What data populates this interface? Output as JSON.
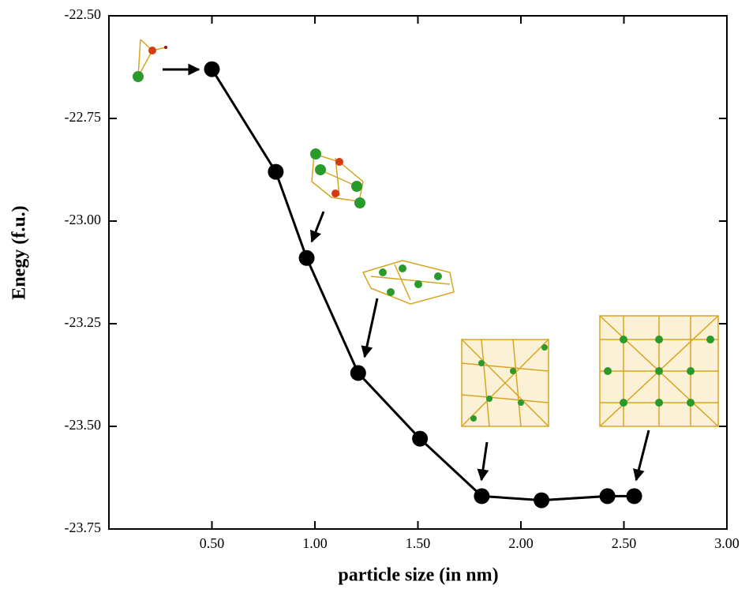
{
  "chart_data": {
    "type": "line",
    "x_label": "particle size (in nm)",
    "y_label": "Enegy (f.u.)",
    "x": [
      0.5,
      0.81,
      0.96,
      1.21,
      1.51,
      1.81,
      2.1,
      2.42,
      2.55
    ],
    "series": [
      {
        "color": "#000000",
        "values": [
          -22.63,
          -22.88,
          -23.09,
          -23.37,
          -23.53,
          -23.67,
          -23.68,
          -23.67,
          -23.67
        ]
      }
    ],
    "xlim": [
      0,
      3
    ],
    "ylim": [
      -23.75,
      -22.5
    ],
    "xticks": [
      {
        "value": 0.5,
        "label": "0.50"
      },
      {
        "value": 1,
        "label": "1.00"
      },
      {
        "value": 1.5,
        "label": "1.50"
      },
      {
        "value": 2,
        "label": "2.00"
      },
      {
        "value": 2.5,
        "label": "2.50"
      },
      {
        "value": 3,
        "label": "3.00"
      }
    ],
    "yticks": [
      {
        "value": -22.5,
        "label": "-22.50"
      },
      {
        "value": -22.75,
        "label": "-22.75"
      },
      {
        "value": -23,
        "label": "-23.00"
      },
      {
        "value": -23.25,
        "label": "-23.25"
      },
      {
        "value": -23.5,
        "label": "-23.50"
      },
      {
        "value": -23.75,
        "label": "-23.75"
      }
    ],
    "grid": false
  }
}
